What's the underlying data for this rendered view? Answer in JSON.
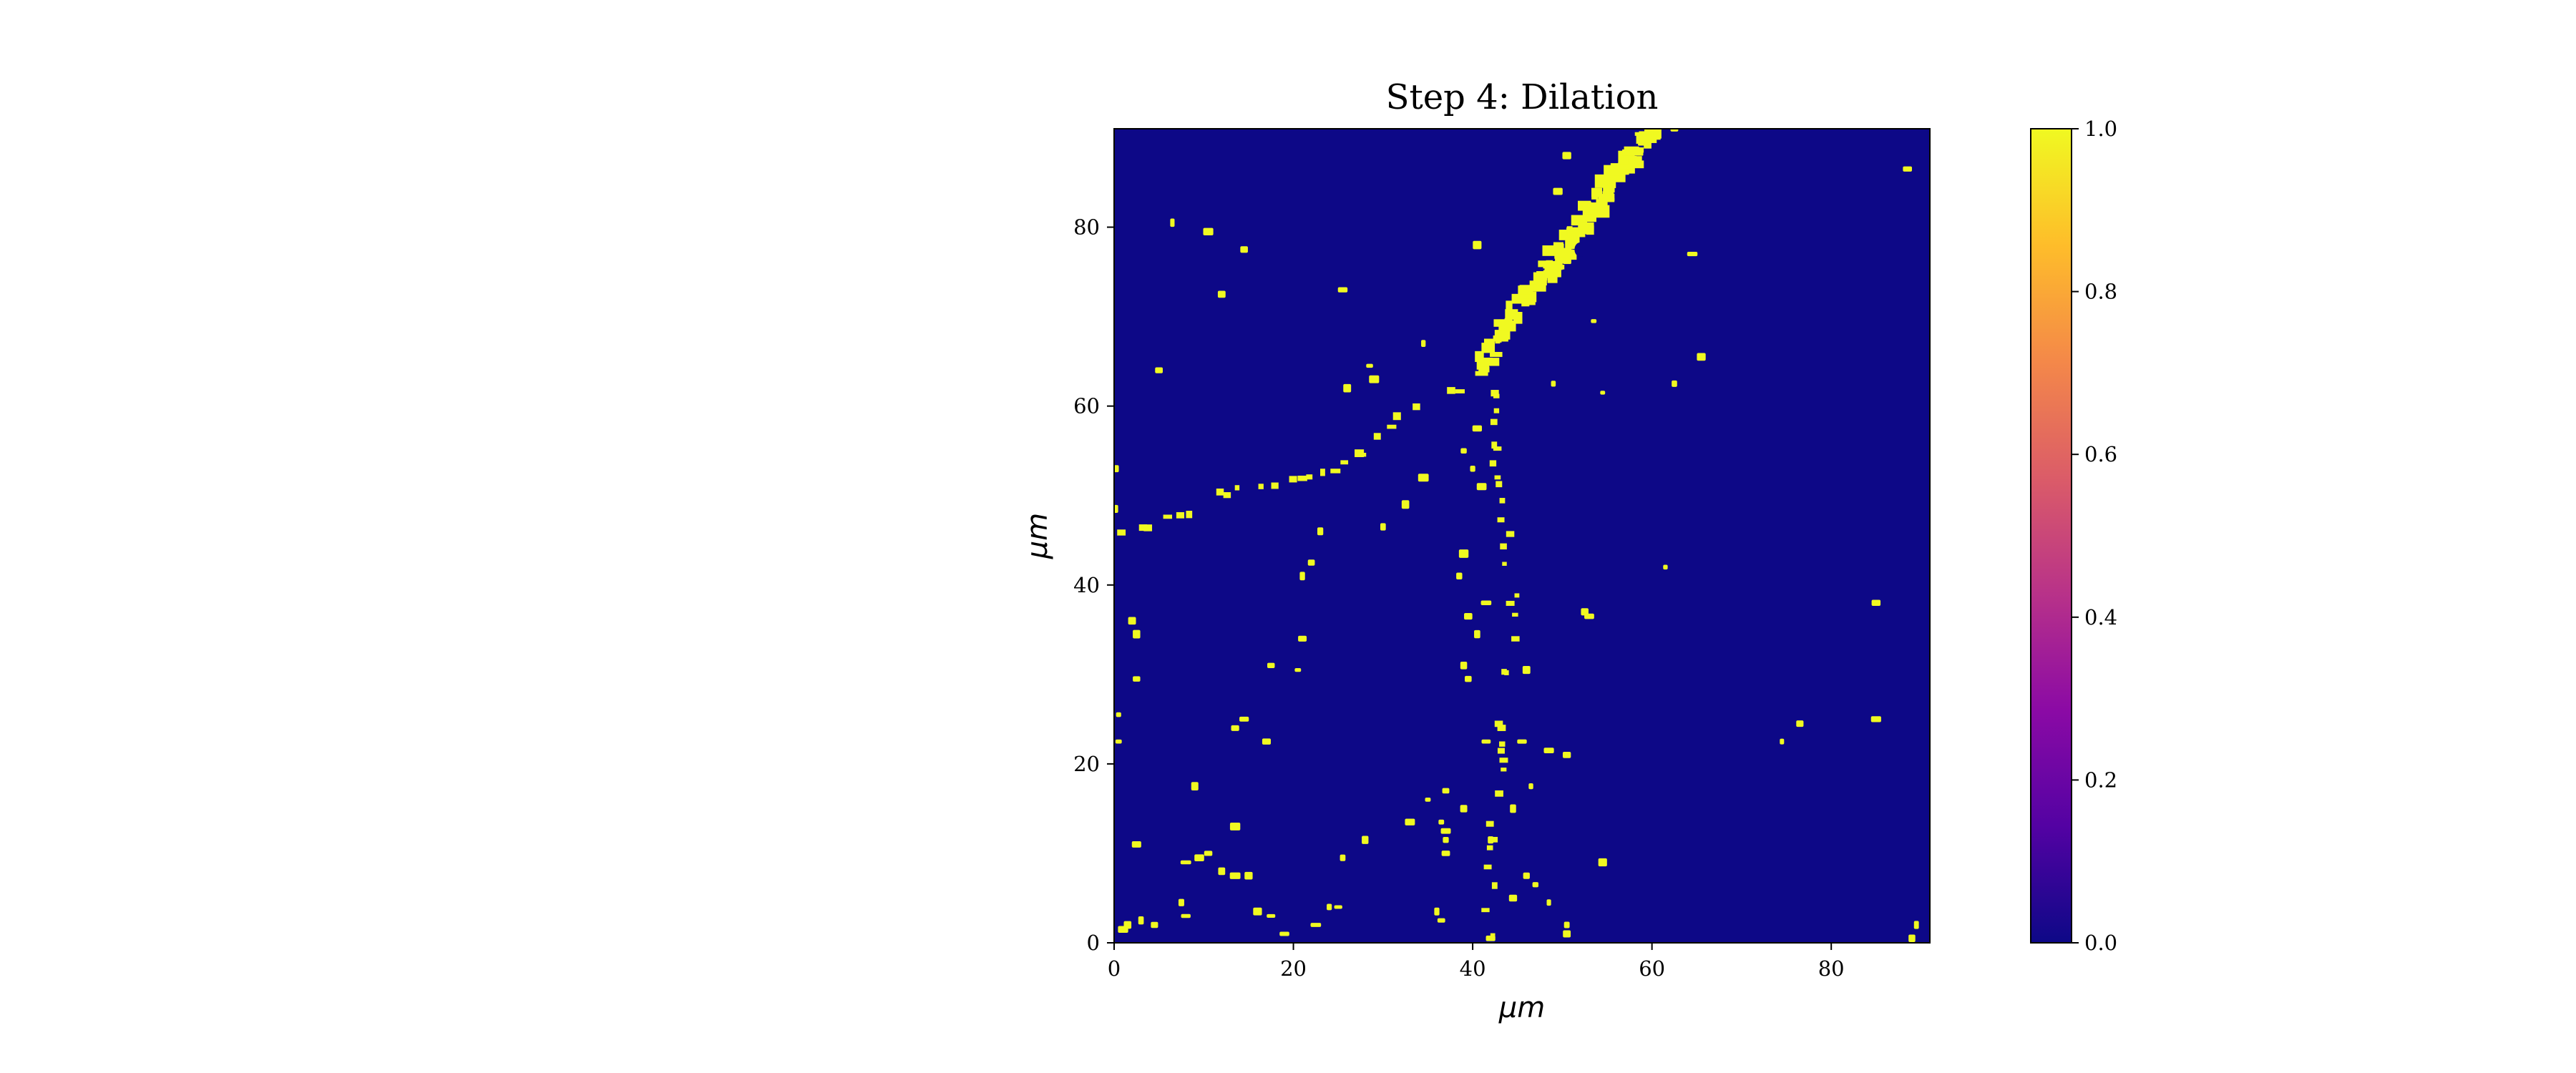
{
  "chart_data": {
    "type": "heatmap",
    "title": "Step 4: Dilation",
    "xlabel": "μm",
    "ylabel": "μm",
    "xlim": [
      0,
      91
    ],
    "ylim": [
      0,
      91
    ],
    "xticks": [
      0,
      20,
      40,
      60,
      80
    ],
    "yticks": [
      0,
      20,
      40,
      60,
      80
    ],
    "colormap": "plasma",
    "background_value": 0.0,
    "foreground_value": 1.0,
    "colorbar": {
      "range": [
        0.0,
        1.0
      ],
      "ticks": [
        "0.0",
        "0.2",
        "0.4",
        "0.6",
        "0.8",
        "1.0"
      ],
      "stops": [
        "#0d0887",
        "#5302a3",
        "#8b0aa5",
        "#b83289",
        "#db5c68",
        "#f48849",
        "#febd2a",
        "#f0f921"
      ]
    },
    "colors": {
      "background": "#0d0887",
      "foreground": "#f0f921"
    },
    "features": {
      "main_fiber": [
        [
          40.5,
          63.5
        ],
        [
          43,
          68
        ],
        [
          46,
          72
        ],
        [
          48.5,
          75
        ],
        [
          51,
          78
        ],
        [
          53,
          81
        ],
        [
          55,
          84
        ],
        [
          57,
          87
        ],
        [
          59,
          90
        ],
        [
          61,
          91
        ]
      ],
      "left_branch": [
        [
          0,
          46
        ],
        [
          4,
          46.5
        ],
        [
          8,
          48
        ],
        [
          12,
          50
        ],
        [
          16,
          51
        ],
        [
          20,
          51.5
        ],
        [
          24,
          52.5
        ],
        [
          28,
          55
        ],
        [
          32,
          58.5
        ],
        [
          36,
          60.5
        ],
        [
          40,
          62.5
        ]
      ],
      "vertical_branch": [
        [
          42,
          62
        ],
        [
          42.5,
          56
        ],
        [
          43,
          50
        ],
        [
          44,
          44
        ],
        [
          44.5,
          38
        ],
        [
          44,
          32
        ],
        [
          43.5,
          26
        ],
        [
          43,
          20
        ],
        [
          42.5,
          14
        ],
        [
          42,
          8
        ],
        [
          42,
          0
        ]
      ],
      "thick_segment": [
        [
          48,
          75
        ],
        [
          56,
          86
        ],
        [
          59.5,
          90.5
        ]
      ],
      "blobs": [
        [
          6.5,
          80.5
        ],
        [
          10.5,
          79.5
        ],
        [
          14.5,
          77.5
        ],
        [
          12,
          72.5
        ],
        [
          25.5,
          73
        ],
        [
          40.5,
          78
        ],
        [
          50.5,
          88
        ],
        [
          49.5,
          84
        ],
        [
          58.5,
          92
        ],
        [
          62.5,
          91
        ],
        [
          64.5,
          77
        ],
        [
          88.5,
          86.5
        ],
        [
          5,
          64
        ],
        [
          34.5,
          67
        ],
        [
          49,
          62.5
        ],
        [
          54.5,
          61.5
        ],
        [
          62.5,
          62.5
        ],
        [
          65.5,
          65.5
        ],
        [
          53.5,
          69.5
        ],
        [
          28.5,
          64.5
        ],
        [
          29,
          63
        ],
        [
          26,
          62
        ],
        [
          34.5,
          52
        ],
        [
          30,
          46.5
        ],
        [
          32.5,
          49
        ],
        [
          23,
          46
        ],
        [
          21,
          41
        ],
        [
          22,
          42.5
        ],
        [
          61.5,
          42
        ],
        [
          52.5,
          37
        ],
        [
          53,
          36.5
        ],
        [
          2,
          36
        ],
        [
          2.5,
          34.5
        ],
        [
          21,
          34
        ],
        [
          17.5,
          31
        ],
        [
          20.5,
          30.5
        ],
        [
          2.5,
          29.5
        ],
        [
          39,
          31
        ],
        [
          46,
          30.5
        ],
        [
          0.5,
          25.5
        ],
        [
          14.5,
          25
        ],
        [
          13.5,
          24
        ],
        [
          17,
          22.5
        ],
        [
          0.5,
          22.5
        ],
        [
          39.5,
          29.5
        ],
        [
          41.5,
          22.5
        ],
        [
          45.5,
          22.5
        ],
        [
          48.5,
          21.5
        ],
        [
          50.5,
          21
        ],
        [
          76.5,
          24.5
        ],
        [
          74.5,
          22.5
        ],
        [
          85,
          25
        ],
        [
          85,
          38
        ],
        [
          46.5,
          17.5
        ],
        [
          9,
          17.5
        ],
        [
          37,
          17
        ],
        [
          35,
          16
        ],
        [
          39,
          15
        ],
        [
          44.5,
          15
        ],
        [
          36.5,
          13.5
        ],
        [
          33,
          13.5
        ],
        [
          13.5,
          13
        ],
        [
          37,
          12.5
        ],
        [
          37,
          11.5
        ],
        [
          42,
          11.5
        ],
        [
          37,
          10
        ],
        [
          2.5,
          11
        ],
        [
          8,
          9
        ],
        [
          9.5,
          9.5
        ],
        [
          10.5,
          10
        ],
        [
          12,
          8
        ],
        [
          13.5,
          7.5
        ],
        [
          15,
          7.5
        ],
        [
          25.5,
          9.5
        ],
        [
          28,
          11.5
        ],
        [
          54.5,
          9
        ],
        [
          7.5,
          4.5
        ],
        [
          8,
          3
        ],
        [
          16,
          3.5
        ],
        [
          17.5,
          3
        ],
        [
          24,
          4
        ],
        [
          25,
          4
        ],
        [
          36,
          3.5
        ],
        [
          36.5,
          2.5
        ],
        [
          44.5,
          5
        ],
        [
          48.5,
          4.5
        ],
        [
          47,
          6.5
        ],
        [
          46,
          7.5
        ],
        [
          1.5,
          2
        ],
        [
          3,
          2.5
        ],
        [
          4.5,
          2
        ],
        [
          1,
          1.5
        ],
        [
          19,
          1
        ],
        [
          22.5,
          2
        ],
        [
          42,
          0.5
        ],
        [
          50.5,
          2
        ],
        [
          50.5,
          1
        ],
        [
          89.5,
          2
        ],
        [
          89,
          0.5
        ],
        [
          0,
          53
        ],
        [
          0,
          48.5
        ],
        [
          40,
          53
        ],
        [
          41,
          51
        ],
        [
          39,
          55
        ],
        [
          40.5,
          57.5
        ],
        [
          38.5,
          41
        ],
        [
          39.5,
          36.5
        ],
        [
          40.5,
          34.5
        ],
        [
          41.5,
          38
        ],
        [
          39,
          43.5
        ]
      ]
    }
  }
}
